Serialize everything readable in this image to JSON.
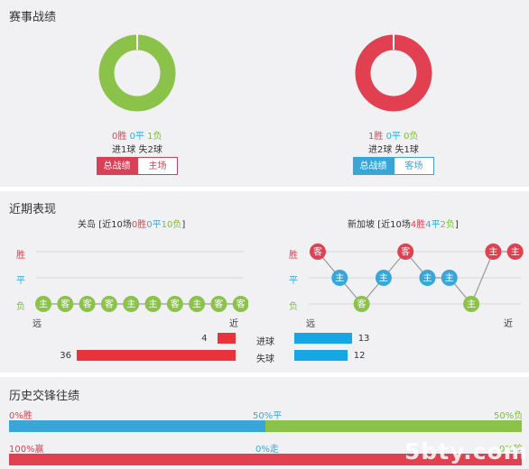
{
  "sections": {
    "record_title": "赛事战绩",
    "recent_title": "近期表现",
    "h2h_title": "历史交锋往绩"
  },
  "home_summary": {
    "win": "0胜",
    "draw": "0平",
    "loss": "1负",
    "goals": "进1球 失2球",
    "tab_total": "总战绩",
    "tab_venue": "主场"
  },
  "away_summary": {
    "win": "1胜",
    "draw": "0平",
    "loss": "0负",
    "goals": "进2球 失1球",
    "tab_total": "总战绩",
    "tab_venue": "客场"
  },
  "colors": {
    "red": "#e04050",
    "blue": "#3aa6d8",
    "green": "#8bc34a",
    "grey": "#cccccc"
  },
  "recent": {
    "home": {
      "team": "关岛",
      "summary_prefix": "[近10场",
      "wins": "0胜",
      "draws": "0平",
      "losses": "10负",
      "summary_suffix": "]",
      "results": [
        "L",
        "L",
        "L",
        "L",
        "L",
        "L",
        "L",
        "L",
        "L",
        "L"
      ],
      "venues": [
        "主",
        "客",
        "客",
        "客",
        "主",
        "主",
        "客",
        "主",
        "客",
        "客"
      ],
      "goals_for": 4,
      "goals_against": 36
    },
    "away": {
      "team": "新加坡",
      "summary_prefix": "[近10场",
      "wins": "4胜",
      "draws": "4平",
      "losses": "2负",
      "summary_suffix": "]",
      "results": [
        "W",
        "D",
        "L",
        "D",
        "W",
        "D",
        "D",
        "L",
        "W",
        "W"
      ],
      "venues": [
        "客",
        "主",
        "客",
        "主",
        "客",
        "主",
        "主",
        "主",
        "主",
        "主"
      ],
      "goals_for": 13,
      "goals_against": 12
    },
    "axis": {
      "win": "胜",
      "draw": "平",
      "loss": "负",
      "far": "远",
      "near": "近"
    },
    "labels": {
      "scored": "进球",
      "conceded": "失球"
    }
  },
  "h2h": {
    "row1": {
      "left": "0%胜",
      "mid": "50%平",
      "right": "50%负",
      "blue_fraction": 0.5
    },
    "row2": {
      "left": "100%赢",
      "mid": "0%走",
      "right": "0%输",
      "red_fraction": 1.0
    }
  },
  "watermark": "5bty.com"
}
